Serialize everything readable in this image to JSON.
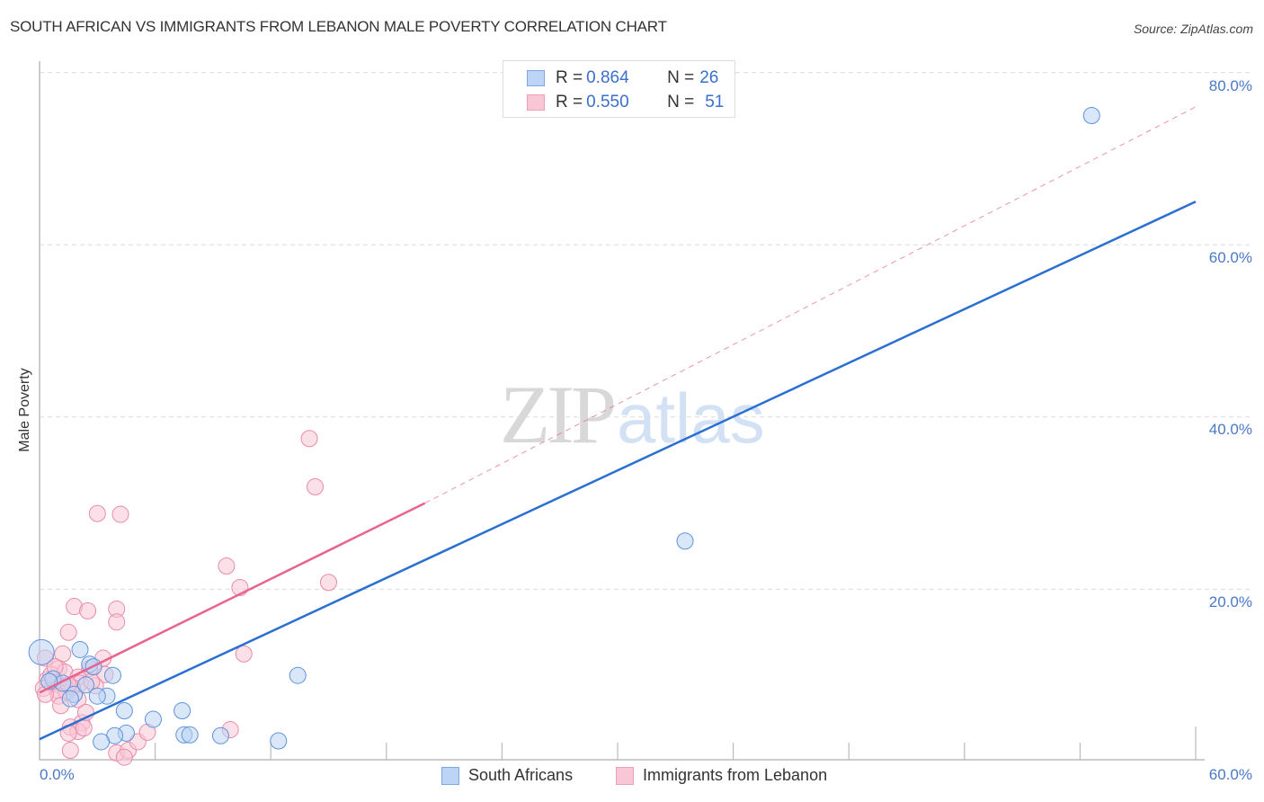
{
  "header": {
    "title": "SOUTH AFRICAN VS IMMIGRANTS FROM LEBANON MALE POVERTY CORRELATION CHART",
    "source": "Source: ZipAtlas.com"
  },
  "stats_box": {
    "rows": [
      {
        "r_label": "R = ",
        "r_value": "0.864",
        "n_label": "N = ",
        "n_value": "26",
        "color": "#a9c8f0"
      },
      {
        "r_label": "R = ",
        "r_value": "0.550",
        "n_label": "N = ",
        "n_value": "51",
        "color": "#f7bcd0"
      }
    ]
  },
  "axes": {
    "ylabel": "Male Poverty",
    "yticks": [
      "80.0%",
      "60.0%",
      "40.0%",
      "20.0%"
    ],
    "xtick_left": "0.0%",
    "xtick_right": "60.0%"
  },
  "legend": {
    "items": [
      {
        "label": "South Africans",
        "color": "#a9c8f0",
        "border": "#6a9ee0"
      },
      {
        "label": "Immigrants from Lebanon",
        "color": "#f7bcd0",
        "border": "#e98aaa"
      }
    ]
  },
  "watermark": {
    "zip": "ZIP",
    "atlas": "atlas"
  },
  "colors": {
    "blue_line": "#2a6fd1",
    "pink_line": "#e8648e",
    "blue_fill": "#b9d3f4",
    "pink_fill": "#f9c6d6",
    "tick_label": "#4a78c8"
  },
  "chart_data": {
    "type": "scatter",
    "title": "SOUTH AFRICAN VS IMMIGRANTS FROM LEBANON MALE POVERTY CORRELATION CHART",
    "xlabel": "",
    "ylabel": "Male Poverty",
    "xlim": [
      0,
      60
    ],
    "ylim": [
      0,
      85
    ],
    "xticks": [
      0,
      6,
      12,
      18,
      24,
      30,
      36,
      42,
      48,
      54,
      60
    ],
    "yticks": [
      20,
      40,
      60,
      80
    ],
    "grid": "horizontal dashed",
    "legend_position": "bottom",
    "series": [
      {
        "name": "South Africans",
        "R": 0.864,
        "N": 26,
        "trend": {
          "x0": 0,
          "y0": 2.6,
          "x1": 60,
          "y1": 65.0
        },
        "points": [
          [
            54.6,
            75.0
          ],
          [
            33.5,
            25.6
          ],
          [
            13.4,
            10.0
          ],
          [
            12.4,
            2.4
          ],
          [
            9.4,
            3.0
          ],
          [
            7.4,
            5.9
          ],
          [
            7.5,
            3.1
          ],
          [
            7.8,
            3.1
          ],
          [
            5.9,
            4.9
          ],
          [
            4.5,
            3.3
          ],
          [
            3.9,
            3.0
          ],
          [
            3.2,
            2.3
          ],
          [
            4.4,
            5.9
          ],
          [
            3.5,
            7.6
          ],
          [
            3.0,
            7.6
          ],
          [
            3.8,
            10.0
          ],
          [
            2.6,
            11.3
          ],
          [
            2.1,
            13.0
          ],
          [
            1.8,
            7.8
          ],
          [
            1.6,
            7.3
          ],
          [
            0.1,
            12.7
          ],
          [
            0.7,
            9.6
          ],
          [
            1.2,
            9.1
          ],
          [
            0.5,
            9.3
          ],
          [
            2.4,
            8.9
          ],
          [
            2.8,
            11.0
          ]
        ]
      },
      {
        "name": "Immigrants from Lebanon",
        "R": 0.55,
        "N": 51,
        "trend": {
          "x0": 0,
          "y0": 8.0,
          "x1": 20,
          "y1": 30.0
        },
        "trend_dashed_extension": {
          "x0": 20,
          "y0": 30.0,
          "x1": 60,
          "y1": 76.0
        },
        "points": [
          [
            14.0,
            37.5
          ],
          [
            14.3,
            31.9
          ],
          [
            3.0,
            28.8
          ],
          [
            4.2,
            28.7
          ],
          [
            9.7,
            22.7
          ],
          [
            10.4,
            20.2
          ],
          [
            15.0,
            20.8
          ],
          [
            1.8,
            18.0
          ],
          [
            2.5,
            17.5
          ],
          [
            4.0,
            17.7
          ],
          [
            4.0,
            16.2
          ],
          [
            1.5,
            15.0
          ],
          [
            10.6,
            12.5
          ],
          [
            3.3,
            12.0
          ],
          [
            2.6,
            10.8
          ],
          [
            1.2,
            12.5
          ],
          [
            0.3,
            12.0
          ],
          [
            1.0,
            10.8
          ],
          [
            3.4,
            10.1
          ],
          [
            1.3,
            10.4
          ],
          [
            2.0,
            9.8
          ],
          [
            0.4,
            9.5
          ],
          [
            0.7,
            9.0
          ],
          [
            1.1,
            8.8
          ],
          [
            0.9,
            8.3
          ],
          [
            1.4,
            8.0
          ],
          [
            0.2,
            8.5
          ],
          [
            2.9,
            8.8
          ],
          [
            2.1,
            9.1
          ],
          [
            1.7,
            8.6
          ],
          [
            0.6,
            10.1
          ],
          [
            1.0,
            7.6
          ],
          [
            2.0,
            7.2
          ],
          [
            1.1,
            6.5
          ],
          [
            0.3,
            7.8
          ],
          [
            2.2,
            4.5
          ],
          [
            1.6,
            4.0
          ],
          [
            2.0,
            3.5
          ],
          [
            1.5,
            3.3
          ],
          [
            2.3,
            3.9
          ],
          [
            2.4,
            5.7
          ],
          [
            1.6,
            1.3
          ],
          [
            4.0,
            1.0
          ],
          [
            4.6,
            1.3
          ],
          [
            5.1,
            2.3
          ],
          [
            5.6,
            3.4
          ],
          [
            9.9,
            3.7
          ],
          [
            4.4,
            0.5
          ],
          [
            1.5,
            8.9
          ],
          [
            2.7,
            9.3
          ],
          [
            0.8,
            11.0
          ]
        ]
      }
    ]
  }
}
